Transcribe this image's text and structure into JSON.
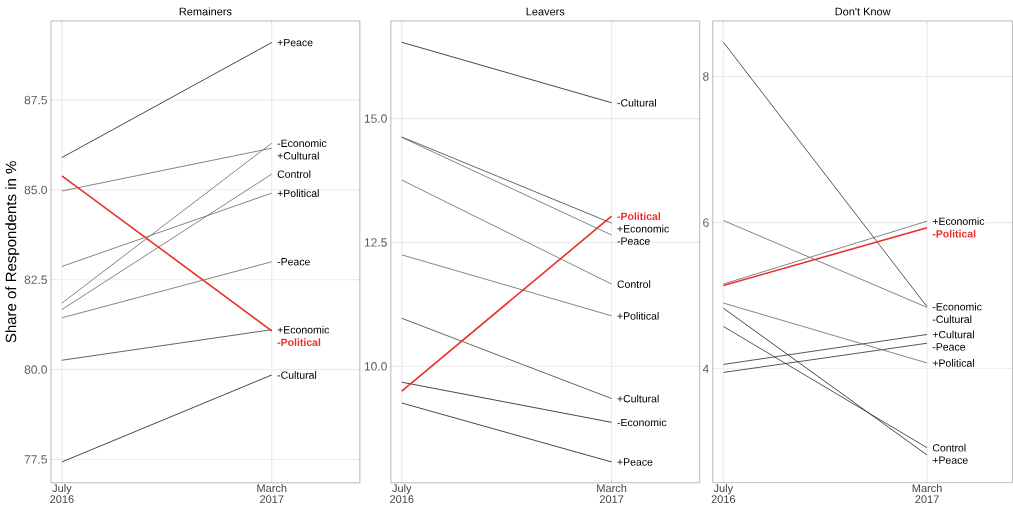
{
  "chart_data": [
    {
      "type": "line",
      "title": "Remainers",
      "ylabel": "Share of Respondents in %",
      "categories": [
        "July 2016",
        "March 2017"
      ],
      "ylim": [
        76.85,
        89.7
      ],
      "yticks": [
        77.5,
        {
          "value": 80,
          "label": "80.0"
        },
        82.5,
        {
          "value": 85,
          "label": "85.0"
        },
        87.5
      ],
      "grid": true,
      "series": [
        {
          "name": "+Peace",
          "color": "#333333",
          "values": [
            85.9,
            89.1
          ]
        },
        {
          "name": "-Economic",
          "color": "#777777",
          "values": [
            81.85,
            86.3
          ]
        },
        {
          "name": "+Cultural",
          "color": "#777777",
          "values": [
            84.97,
            86.16
          ]
        },
        {
          "name": "Control",
          "color": "#777777",
          "values": [
            81.67,
            85.44
          ]
        },
        {
          "name": "+Political",
          "color": "#777777",
          "values": [
            82.87,
            84.91
          ]
        },
        {
          "name": "-Peace",
          "color": "#777777",
          "values": [
            81.44,
            83.0
          ]
        },
        {
          "name": "+Economic",
          "color": "#555555",
          "values": [
            80.26,
            81.11
          ]
        },
        {
          "name": "-Political",
          "color": "#e8302a",
          "values": [
            85.39,
            81.08
          ]
        },
        {
          "name": "-Cultural",
          "color": "#333333",
          "values": [
            77.43,
            79.85
          ]
        }
      ]
    },
    {
      "type": "line",
      "title": "Leavers",
      "categories": [
        "July 2016",
        "March 2017"
      ],
      "ylim": [
        7.65,
        16.97
      ],
      "yticks": [
        {
          "value": 10,
          "label": "10.0"
        },
        12.5,
        {
          "value": 15,
          "label": "15.0"
        }
      ],
      "grid": true,
      "series": [
        {
          "name": "-Cultural",
          "color": "#333333",
          "values": [
            16.54,
            15.32
          ]
        },
        {
          "name": "-Political",
          "color": "#e8302a",
          "values": [
            9.5,
            13.03
          ]
        },
        {
          "name": "+Economic",
          "color": "#555555",
          "values": [
            14.63,
            12.89
          ]
        },
        {
          "name": "-Peace",
          "color": "#777777",
          "values": [
            14.62,
            12.65
          ]
        },
        {
          "name": "Control",
          "color": "#777777",
          "values": [
            13.76,
            11.66
          ]
        },
        {
          "name": "+Political",
          "color": "#777777",
          "values": [
            12.25,
            11.02
          ]
        },
        {
          "name": "+Cultural",
          "color": "#555555",
          "values": [
            10.97,
            9.35
          ]
        },
        {
          "name": "-Economic",
          "color": "#333333",
          "values": [
            9.68,
            8.87
          ]
        },
        {
          "name": "+Peace",
          "color": "#333333",
          "values": [
            9.26,
            8.07
          ]
        }
      ]
    },
    {
      "type": "line",
      "title": "Don't Know",
      "categories": [
        "July 2016",
        "March 2017"
      ],
      "ylim": [
        2.44,
        8.76
      ],
      "yticks": [
        4,
        6,
        8
      ],
      "grid": true,
      "series": [
        {
          "name": "+Economic",
          "color": "#777777",
          "values": [
            5.16,
            6.02
          ]
        },
        {
          "name": "-Political",
          "color": "#e8302a",
          "values": [
            5.14,
            5.93
          ]
        },
        {
          "name": "-Economic",
          "color": "#444444",
          "values": [
            8.47,
            4.85
          ]
        },
        {
          "name": "-Cultural",
          "color": "#777777",
          "values": [
            6.03,
            4.84
          ]
        },
        {
          "name": "+Cultural",
          "color": "#444444",
          "values": [
            4.06,
            4.47
          ]
        },
        {
          "name": "-Peace",
          "color": "#444444",
          "values": [
            3.95,
            4.35
          ]
        },
        {
          "name": "+Political",
          "color": "#777777",
          "values": [
            4.9,
            4.08
          ]
        },
        {
          "name": "Control",
          "color": "#444444",
          "values": [
            4.58,
            2.92
          ]
        },
        {
          "name": "+Peace",
          "color": "#333333",
          "values": [
            4.83,
            2.82
          ]
        }
      ]
    }
  ]
}
